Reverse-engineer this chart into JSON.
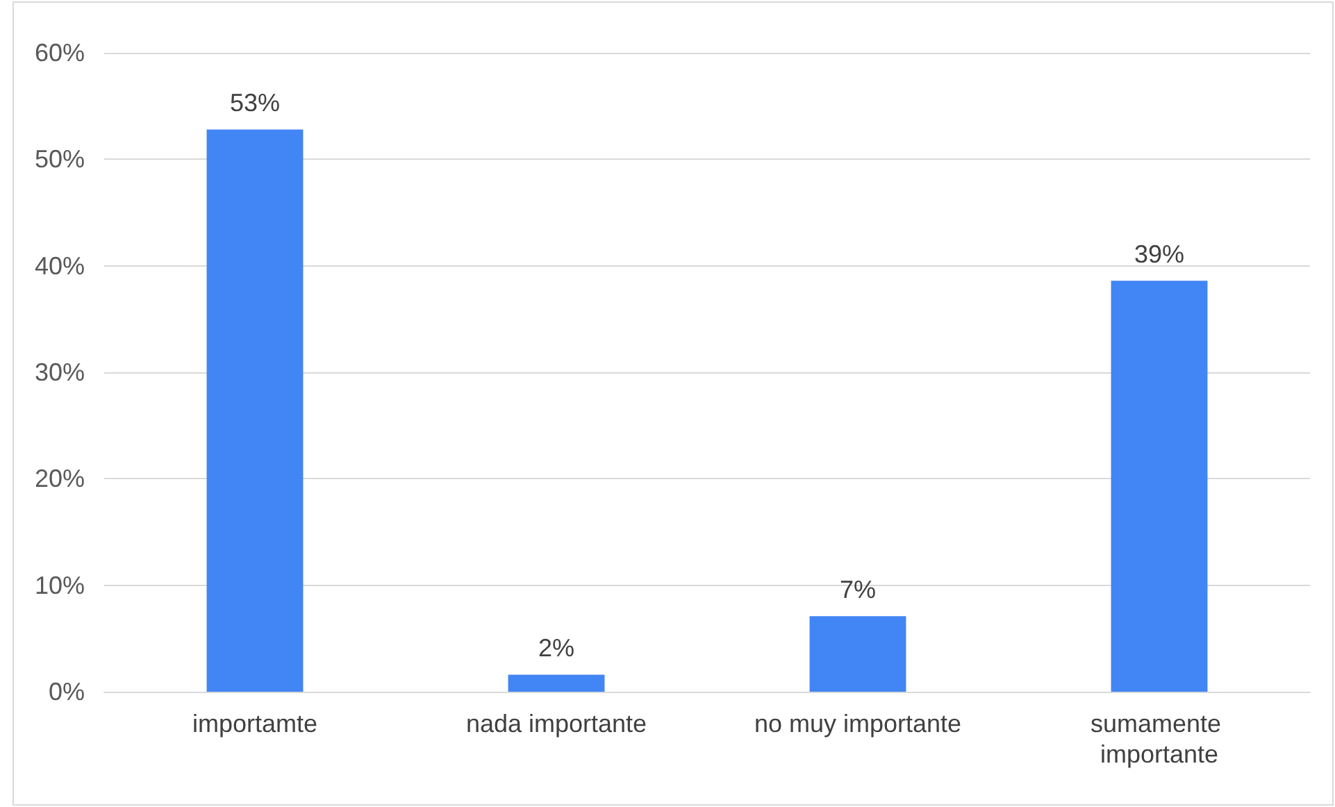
{
  "chart_data": {
    "type": "bar",
    "categories": [
      "importamte",
      "nada importante",
      "no muy importante",
      "sumamente importante"
    ],
    "values": [
      52.8,
      1.6,
      7.1,
      38.6
    ],
    "value_labels": [
      "53%",
      "2%",
      "7%",
      "39%"
    ],
    "color": "#4285f4",
    "ylim": [
      0,
      60
    ],
    "yticks": [
      {
        "value": 0,
        "label": "0%"
      },
      {
        "value": 10,
        "label": "10%"
      },
      {
        "value": 20,
        "label": "20%"
      },
      {
        "value": 30,
        "label": "30%"
      },
      {
        "value": 40,
        "label": "40%"
      },
      {
        "value": 50,
        "label": "50%"
      },
      {
        "value": 60,
        "label": "60%"
      }
    ],
    "grid": "y"
  }
}
